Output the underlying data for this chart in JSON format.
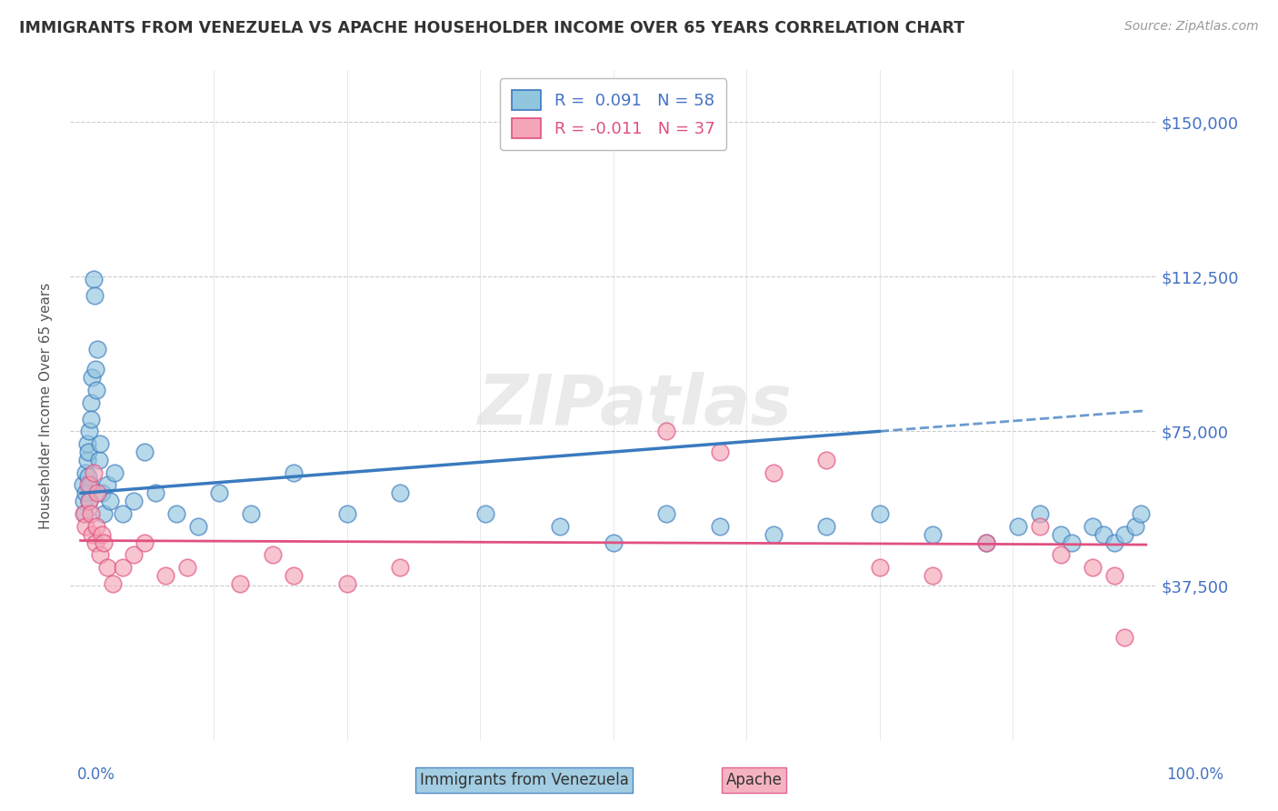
{
  "title": "IMMIGRANTS FROM VENEZUELA VS APACHE HOUSEHOLDER INCOME OVER 65 YEARS CORRELATION CHART",
  "source": "Source: ZipAtlas.com",
  "ylabel": "Householder Income Over 65 years",
  "legend_label1": "Immigrants from Venezuela",
  "legend_label2": "Apache",
  "r1": 0.091,
  "n1": 58,
  "r2": -0.011,
  "n2": 37,
  "xlim": [
    -1.0,
    101.0
  ],
  "ylim": [
    0,
    162500
  ],
  "yticks": [
    0,
    37500,
    75000,
    112500,
    150000
  ],
  "ytick_labels": [
    "",
    "$37,500",
    "$75,000",
    "$112,500",
    "$150,000"
  ],
  "color_blue": "#92c5de",
  "color_pink": "#f4a6b8",
  "line_color_blue": "#3a7abf",
  "line_color_pink": "#e05080",
  "watermark": "ZIPatlas",
  "blue_scatter_x": [
    0.2,
    0.3,
    0.4,
    0.5,
    0.5,
    0.6,
    0.6,
    0.7,
    0.7,
    0.8,
    0.8,
    0.9,
    1.0,
    1.0,
    1.1,
    1.2,
    1.3,
    1.4,
    1.5,
    1.6,
    1.7,
    1.8,
    2.0,
    2.2,
    2.5,
    2.8,
    3.2,
    4.0,
    5.0,
    6.0,
    7.0,
    9.0,
    11.0,
    13.0,
    16.0,
    20.0,
    25.0,
    30.0,
    38.0,
    45.0,
    50.0,
    55.0,
    60.0,
    65.0,
    70.0,
    75.0,
    80.0,
    85.0,
    88.0,
    90.0,
    92.0,
    93.0,
    95.0,
    96.0,
    97.0,
    98.0,
    99.0,
    99.5
  ],
  "blue_scatter_y": [
    62000,
    58000,
    55000,
    60000,
    65000,
    68000,
    72000,
    70000,
    64000,
    75000,
    58000,
    62000,
    82000,
    78000,
    88000,
    112000,
    108000,
    90000,
    85000,
    95000,
    68000,
    72000,
    60000,
    55000,
    62000,
    58000,
    65000,
    55000,
    58000,
    70000,
    60000,
    55000,
    52000,
    60000,
    55000,
    65000,
    55000,
    60000,
    55000,
    52000,
    48000,
    55000,
    52000,
    50000,
    52000,
    55000,
    50000,
    48000,
    52000,
    55000,
    50000,
    48000,
    52000,
    50000,
    48000,
    50000,
    52000,
    55000
  ],
  "pink_scatter_x": [
    0.3,
    0.5,
    0.7,
    0.8,
    1.0,
    1.1,
    1.2,
    1.4,
    1.5,
    1.6,
    1.8,
    2.0,
    2.2,
    2.5,
    3.0,
    4.0,
    5.0,
    6.0,
    8.0,
    10.0,
    15.0,
    18.0,
    20.0,
    25.0,
    30.0,
    55.0,
    60.0,
    65.0,
    70.0,
    75.0,
    80.0,
    85.0,
    90.0,
    92.0,
    95.0,
    97.0,
    98.0
  ],
  "pink_scatter_y": [
    55000,
    52000,
    62000,
    58000,
    55000,
    50000,
    65000,
    48000,
    52000,
    60000,
    45000,
    50000,
    48000,
    42000,
    38000,
    42000,
    45000,
    48000,
    40000,
    42000,
    38000,
    45000,
    40000,
    38000,
    42000,
    75000,
    70000,
    65000,
    68000,
    42000,
    40000,
    48000,
    52000,
    45000,
    42000,
    40000,
    25000
  ],
  "blue_trend_x0": 0,
  "blue_trend_y0": 60000,
  "blue_trend_x1": 100,
  "blue_trend_y1": 80000,
  "blue_solid_end": 75,
  "pink_trend_x0": 0,
  "pink_trend_y0": 48500,
  "pink_trend_x1": 100,
  "pink_trend_y1": 47500
}
